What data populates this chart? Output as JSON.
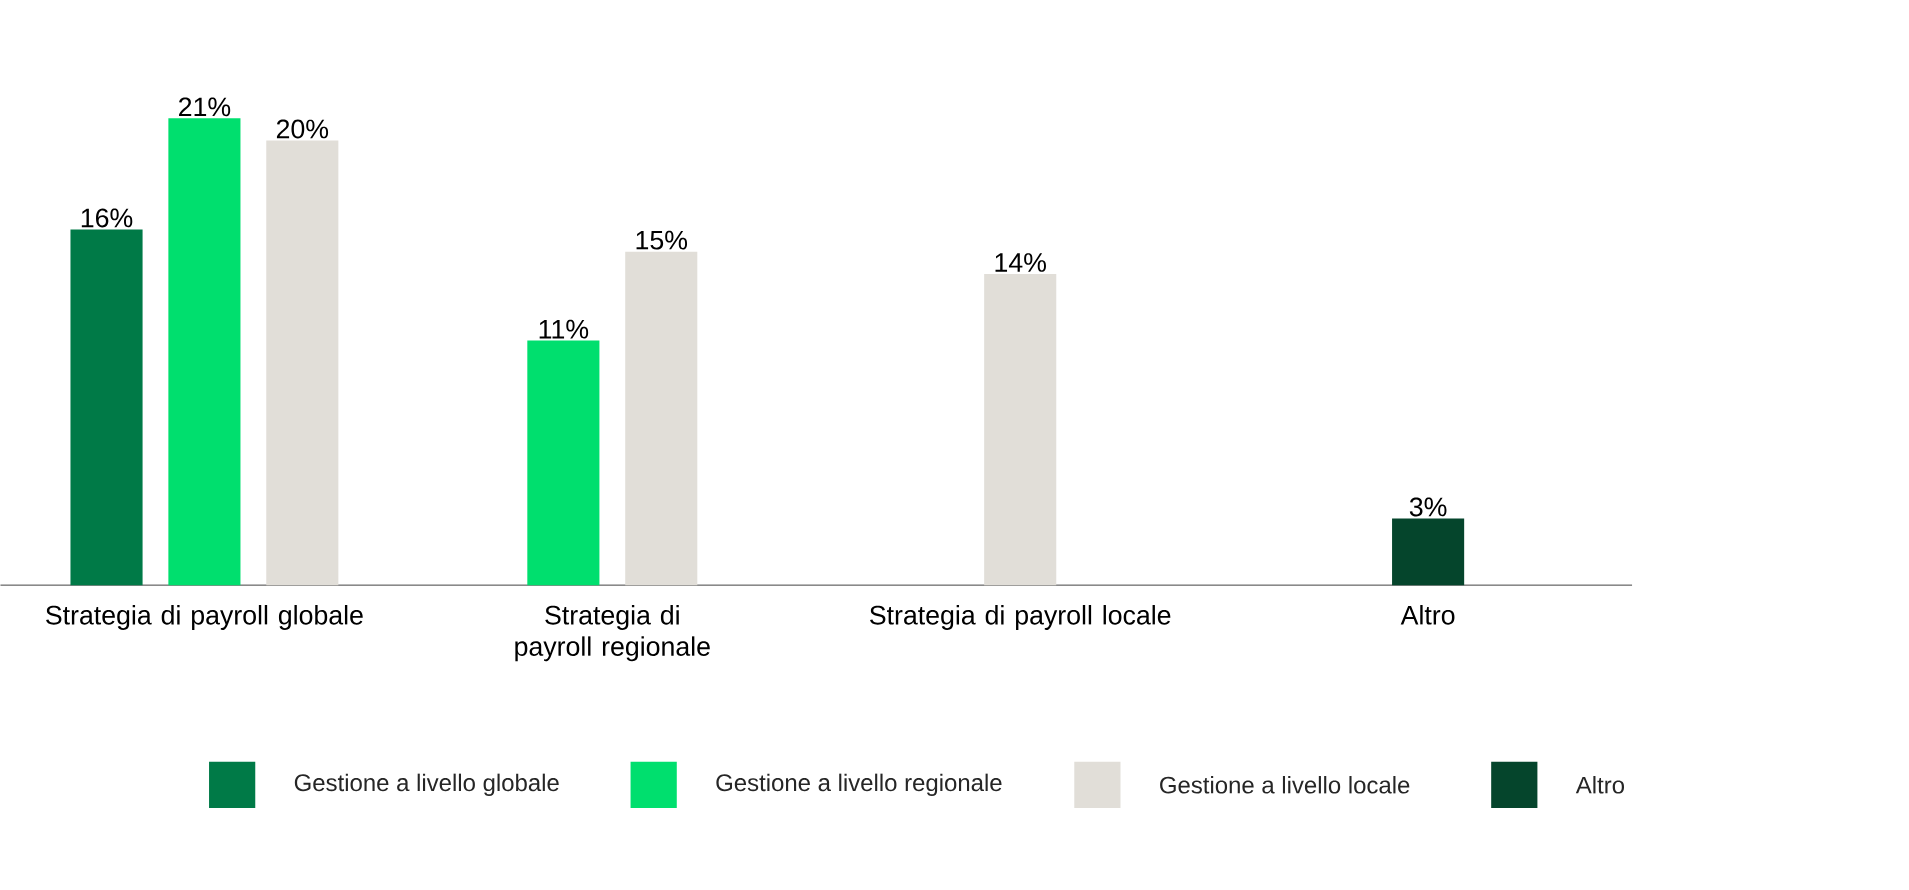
{
  "chart_data": {
    "type": "bar",
    "categories": [
      "Strategia di payroll globale",
      "Strategia di payroll regionale",
      "Strategia di payroll locale",
      "Altro"
    ],
    "series": [
      {
        "name": "Gestione a livello globale",
        "color": "#007a47",
        "values": [
          16,
          null,
          null,
          null
        ],
        "value_labels": [
          "16%",
          null,
          null,
          null
        ]
      },
      {
        "name": "Gestione a livello regionale",
        "color": "#00df6e",
        "values": [
          21,
          11,
          null,
          null
        ],
        "value_labels": [
          "21%",
          "11%",
          null,
          null
        ]
      },
      {
        "name": "Gestione a livello locale",
        "color": "#e1ded8",
        "values": [
          20,
          15,
          14,
          null
        ],
        "value_labels": [
          "20%",
          "15%",
          "14%",
          null
        ]
      },
      {
        "name": "Altro",
        "color": "#05452c",
        "values": [
          null,
          null,
          null,
          3
        ],
        "value_labels": [
          null,
          null,
          null,
          "3%"
        ]
      }
    ],
    "legend": "bottom",
    "tick_labels": "x",
    "grid": false
  }
}
